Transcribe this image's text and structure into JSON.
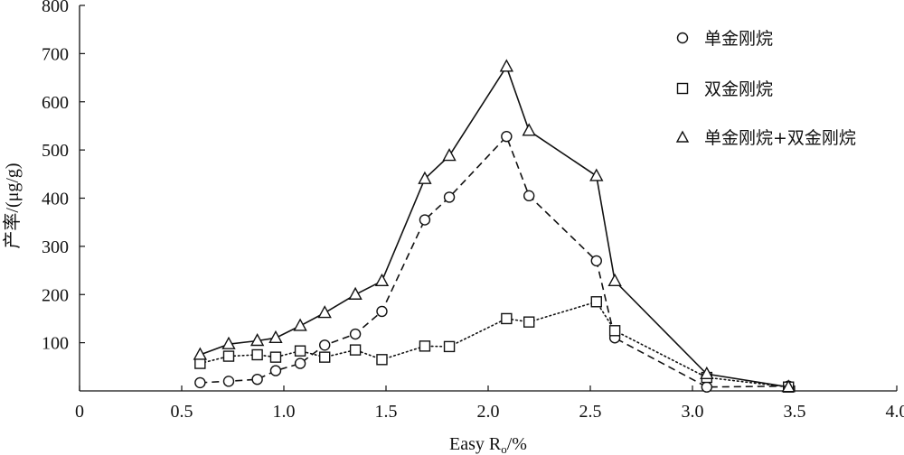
{
  "chart_data": {
    "type": "line",
    "xlabel": "Easy R",
    "xlabel_sub": "o",
    "xlabel_unit": "/%",
    "ylabel": "产率/(μg/g)",
    "xlim": [
      0,
      4.0
    ],
    "ylim": [
      0,
      800
    ],
    "x_ticks": [
      "0",
      "0.5",
      "1.0",
      "1.5",
      "2.0",
      "2.5",
      "3.0",
      "3.5",
      "4.0"
    ],
    "y_ticks": [
      "100",
      "200",
      "300",
      "400",
      "500",
      "600",
      "700",
      "800"
    ],
    "grid": false,
    "legend_position": "top-right",
    "series": [
      {
        "name": "单金刚烷",
        "marker": "circle",
        "line_style": "dashed",
        "color": "#111111",
        "x": [
          0.59,
          0.73,
          0.87,
          0.96,
          1.08,
          1.2,
          1.35,
          1.48,
          1.69,
          1.81,
          2.09,
          2.2,
          2.53,
          2.62,
          3.07,
          3.47
        ],
        "y": [
          17,
          20,
          24,
          42,
          57,
          95,
          118,
          165,
          355,
          402,
          528,
          405,
          270,
          110,
          8,
          10
        ]
      },
      {
        "name": "双金刚烷",
        "marker": "square",
        "line_style": "dotted",
        "color": "#111111",
        "x": [
          0.59,
          0.73,
          0.87,
          0.96,
          1.08,
          1.2,
          1.35,
          1.48,
          1.69,
          1.81,
          2.09,
          2.2,
          2.53,
          2.62,
          3.07,
          3.47
        ],
        "y": [
          57,
          72,
          75,
          70,
          83,
          70,
          85,
          65,
          93,
          92,
          150,
          143,
          185,
          125,
          28,
          8
        ]
      },
      {
        "name": "单金刚烷+双金刚烷",
        "marker": "triangle",
        "line_style": "solid",
        "color": "#111111",
        "x": [
          0.59,
          0.73,
          0.87,
          0.96,
          1.08,
          1.2,
          1.35,
          1.48,
          1.69,
          1.81,
          2.09,
          2.2,
          2.53,
          2.62,
          3.07,
          3.47
        ],
        "y": [
          75,
          97,
          104,
          110,
          135,
          162,
          200,
          228,
          440,
          488,
          673,
          540,
          446,
          228,
          35,
          8
        ]
      }
    ]
  }
}
